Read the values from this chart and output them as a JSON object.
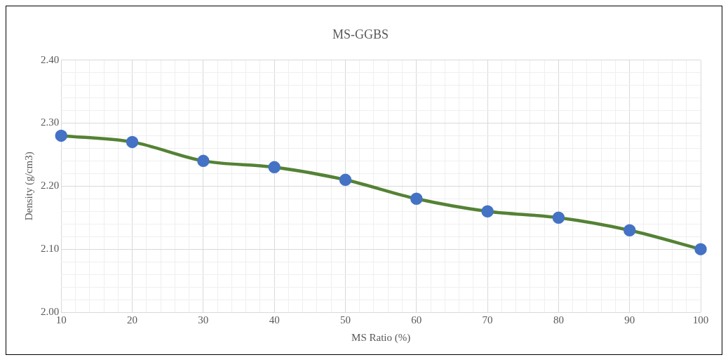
{
  "chart_data": {
    "type": "line",
    "title": "MS-GGBS",
    "xlabel": "MS Ratio (%)",
    "ylabel": "Density (g/cm3)",
    "x": [
      10,
      20,
      30,
      40,
      50,
      60,
      70,
      80,
      90,
      100
    ],
    "series": [
      {
        "color": "#548235",
        "colors": [
          "#4472c4",
          "#4472c4",
          "#4472c4",
          "#4472c4",
          "#4472c4",
          "#4472c4",
          "#4472c4",
          "#4472c4",
          "#4472c4",
          "#4472c4"
        ],
        "values": [
          2.28,
          2.27,
          2.24,
          2.23,
          2.21,
          2.18,
          2.16,
          2.15,
          2.13,
          2.1
        ]
      }
    ],
    "marker": "circle",
    "line_style": "solid",
    "grid": true,
    "legend": false,
    "xlim": [
      10,
      100
    ],
    "xticks": [
      10,
      {
        "value": 12,
        "label": null
      },
      {
        "value": 14,
        "label": null
      },
      {
        "value": 16,
        "label": null
      },
      {
        "value": 18,
        "label": null
      },
      20,
      {
        "value": 22,
        "label": null
      },
      {
        "value": 24,
        "label": null
      },
      {
        "value": 26,
        "label": null
      },
      {
        "value": 28,
        "label": null
      },
      30,
      {
        "value": 32,
        "label": null
      },
      {
        "value": 34,
        "label": null
      },
      {
        "value": 36,
        "label": null
      },
      {
        "value": 38,
        "label": null
      },
      40,
      {
        "value": 42,
        "label": null
      },
      {
        "value": 44,
        "label": null
      },
      {
        "value": 46,
        "label": null
      },
      {
        "value": 48,
        "label": null
      },
      50,
      {
        "value": 52,
        "label": null
      },
      {
        "value": 54,
        "label": null
      },
      {
        "value": 56,
        "label": null
      },
      {
        "value": 58,
        "label": null
      },
      60,
      {
        "value": 62,
        "label": null
      },
      {
        "value": 64,
        "label": null
      },
      {
        "value": 66,
        "label": null
      },
      {
        "value": 68,
        "label": null
      },
      70,
      {
        "value": 72,
        "label": null
      },
      {
        "value": 74,
        "label": null
      },
      {
        "value": 76,
        "label": null
      },
      {
        "value": 78,
        "label": null
      },
      80,
      {
        "value": 82,
        "label": null
      },
      {
        "value": 84,
        "label": null
      },
      {
        "value": 86,
        "label": null
      },
      {
        "value": 88,
        "label": null
      },
      90,
      {
        "value": 92,
        "label": null
      },
      {
        "value": 94,
        "label": null
      },
      {
        "value": 96,
        "label": null
      },
      {
        "value": 98,
        "label": null
      },
      100
    ],
    "ylim": [
      2.0,
      2.4
    ],
    "yticks": [
      {
        "value": 2.0,
        "label": "2.00"
      },
      {
        "value": 2.02,
        "label": null
      },
      {
        "value": 2.04,
        "label": null
      },
      {
        "value": 2.06,
        "label": null
      },
      {
        "value": 2.08,
        "label": null
      },
      {
        "value": 2.1,
        "label": "2.10"
      },
      {
        "value": 2.12,
        "label": null
      },
      {
        "value": 2.14,
        "label": null
      },
      {
        "value": 2.16,
        "label": null
      },
      {
        "value": 2.18,
        "label": null
      },
      {
        "value": 2.2,
        "label": "2.20"
      },
      {
        "value": 2.22,
        "label": null
      },
      {
        "value": 2.24,
        "label": null
      },
      {
        "value": 2.26,
        "label": null
      },
      {
        "value": 2.28,
        "label": null
      },
      {
        "value": 2.3,
        "label": "2.30"
      },
      {
        "value": 2.32,
        "label": null
      },
      {
        "value": 2.34,
        "label": null
      },
      {
        "value": 2.36,
        "label": null
      },
      {
        "value": 2.38,
        "label": null
      },
      {
        "value": 2.4,
        "label": "2.40"
      }
    ]
  }
}
